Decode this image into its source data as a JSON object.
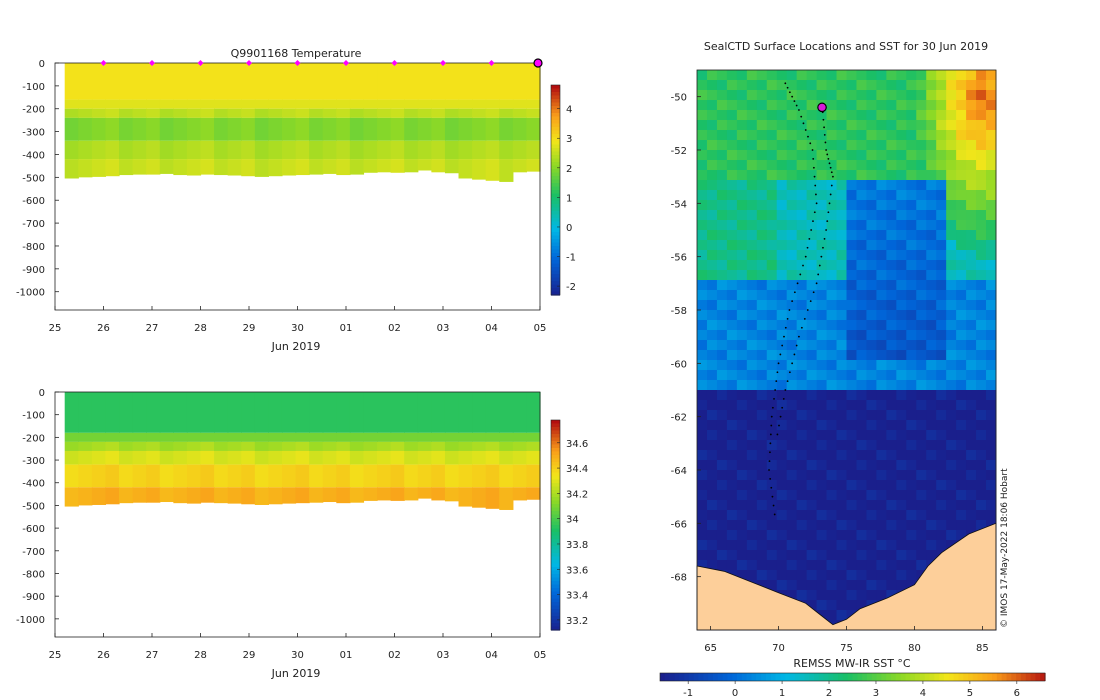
{
  "chart_data": [
    {
      "type": "heatmap",
      "panel": "temperature-section",
      "title": "Q9901168  Temperature",
      "xlabel": "Jun 2019",
      "ylabel": "",
      "x_tick_labels": [
        "25",
        "26",
        "27",
        "28",
        "29",
        "30",
        "01",
        "02",
        "03",
        "04",
        "05"
      ],
      "xlim": [
        25,
        35
      ],
      "ylim": [
        -1080,
        0
      ],
      "y_ticks": [
        0,
        -100,
        -200,
        -300,
        -400,
        -500,
        -600,
        -700,
        -800,
        -900,
        -1000
      ],
      "y_tick_labels": [
        "0",
        "-100",
        "-200",
        "-300",
        "-400",
        "-500",
        "-600",
        "-700",
        "-800",
        "-900",
        "-1000"
      ],
      "profile_markers_day": [
        26,
        27,
        28,
        29,
        30,
        31,
        32,
        33,
        34,
        35
      ],
      "profile_depths": [
        -505,
        -500,
        -498,
        -495,
        -490,
        -488,
        -488,
        -485,
        -490,
        -492,
        -488,
        -490,
        -492,
        -495,
        -498,
        -495,
        -492,
        -490,
        -488,
        -485,
        -490,
        -488,
        -480,
        -478,
        -480,
        -478,
        -470,
        -478,
        -482,
        -505,
        -510,
        -515,
        -520,
        -478,
        -475
      ],
      "layers": [
        {
          "top": 0,
          "bottom": -160,
          "value": 3.0
        },
        {
          "top": -160,
          "bottom": -200,
          "value": 2.8
        },
        {
          "top": -200,
          "bottom": -240,
          "value": 2.5
        },
        {
          "top": -240,
          "bottom": -340,
          "value": 2.0
        },
        {
          "top": -340,
          "bottom": -420,
          "value": 2.4
        },
        {
          "top": -420,
          "bottom": -520,
          "value": 2.6
        }
      ],
      "colorbar": {
        "min": -2.3,
        "max": 4.8,
        "ticks": [
          4,
          3,
          2,
          1,
          0,
          -1,
          -2
        ],
        "tick_labels": [
          "4",
          "3",
          "2",
          "1",
          "0",
          "-1",
          "-2"
        ]
      }
    },
    {
      "type": "heatmap",
      "panel": "salinity-section",
      "title": "",
      "xlabel": "Jun 2019",
      "ylabel": "",
      "x_tick_labels": [
        "25",
        "26",
        "27",
        "28",
        "29",
        "30",
        "01",
        "02",
        "03",
        "04",
        "05"
      ],
      "xlim": [
        25,
        35
      ],
      "ylim": [
        -1080,
        0
      ],
      "y_ticks": [
        0,
        -100,
        -200,
        -300,
        -400,
        -500,
        -600,
        -700,
        -800,
        -900,
        -1000
      ],
      "y_tick_labels": [
        "0",
        "-100",
        "-200",
        "-300",
        "-400",
        "-500",
        "-600",
        "-700",
        "-800",
        "-900",
        "-1000"
      ],
      "layers": [
        {
          "top": 0,
          "bottom": -180,
          "value": 33.95
        },
        {
          "top": -180,
          "bottom": -220,
          "value": 34.1
        },
        {
          "top": -220,
          "bottom": -260,
          "value": 34.2
        },
        {
          "top": -260,
          "bottom": -320,
          "value": 34.3
        },
        {
          "top": -320,
          "bottom": -420,
          "value": 34.4
        },
        {
          "top": -420,
          "bottom": -520,
          "value": 34.5
        }
      ],
      "colorbar": {
        "min": 33.12,
        "max": 34.78,
        "ticks": [
          34.6,
          34.4,
          34.2,
          34,
          33.8,
          33.6,
          33.4,
          33.2
        ],
        "tick_labels": [
          "34.6",
          "34.4",
          "34.2",
          "34",
          "33.8",
          "33.6",
          "33.4",
          "33.2"
        ]
      }
    },
    {
      "type": "heatmap",
      "panel": "sst-map",
      "title": "SealCTD Surface Locations and SST for 30 Jun 2019",
      "xlabel": "",
      "ylabel": "",
      "xlim": [
        64,
        86
      ],
      "ylim": [
        -70,
        -49
      ],
      "x_ticks": [
        65,
        70,
        75,
        80,
        85
      ],
      "x_tick_labels": [
        "65",
        "70",
        "75",
        "80",
        "85"
      ],
      "y_ticks": [
        -50,
        -52,
        -54,
        -56,
        -58,
        -60,
        -62,
        -64,
        -66,
        -68
      ],
      "y_tick_labels": [
        "-50",
        "-52",
        "-54",
        "-56",
        "-58",
        "-60",
        "-62",
        "-64",
        "-66",
        "-68"
      ],
      "sst_regions": [
        {
          "lat_top": -49,
          "lat_bottom": -53,
          "value": 2.5
        },
        {
          "lat_top": -53,
          "lat_bottom": -57,
          "value": 1.5
        },
        {
          "lat_top": -57,
          "lat_bottom": -61,
          "value": 0.3
        },
        {
          "lat_top": -61,
          "lat_bottom": -70,
          "value": -1.6
        }
      ],
      "warm_corner": {
        "lon": 85,
        "lat": -50,
        "value": 6
      },
      "land_color": "#fdcf9a",
      "track_1": [
        [
          70.5,
          -49.5
        ],
        [
          71.5,
          -50.5
        ],
        [
          72.5,
          -52
        ],
        [
          72.8,
          -54
        ],
        [
          72,
          -56
        ],
        [
          70.8,
          -58
        ],
        [
          70,
          -60
        ],
        [
          69.5,
          -62
        ],
        [
          69.3,
          -64
        ],
        [
          69.8,
          -66
        ]
      ],
      "track_2": [
        [
          73.2,
          -50.3
        ],
        [
          73.5,
          -52
        ],
        [
          74,
          -53
        ],
        [
          73.5,
          -55
        ],
        [
          72.8,
          -57
        ],
        [
          71.5,
          -59
        ],
        [
          70.5,
          -61
        ],
        [
          69.8,
          -63
        ]
      ],
      "current_location": {
        "lon": 73.2,
        "lat": -50.4
      },
      "colorbar_label": "REMSS MW-IR SST °C",
      "colorbar": {
        "min": -1.6,
        "max": 6.6,
        "ticks": [
          -1,
          0,
          1,
          2,
          3,
          4,
          5,
          6
        ],
        "tick_labels": [
          "-1",
          "0",
          "1",
          "2",
          "3",
          "4",
          "5",
          "6"
        ]
      }
    }
  ],
  "credit": "© IMOS 17-May-2022 18:06 Hobart",
  "colors": {
    "marker": "#ff00ff",
    "location": "#d81bd8",
    "axis": "#222222",
    "land": "#fdcf9a"
  }
}
